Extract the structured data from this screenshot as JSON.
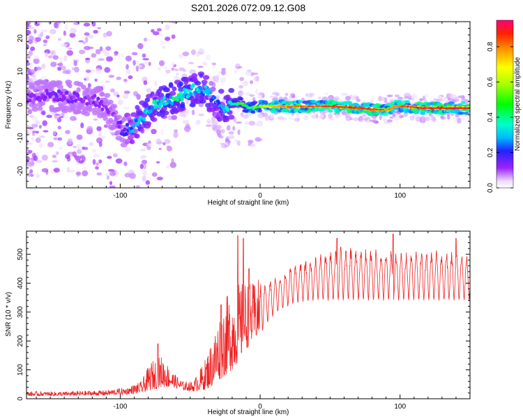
{
  "title": "S201.2026.072.09.12.G08",
  "chart_data": [
    {
      "type": "heatmap",
      "title": "S201.2026.072.09.12.G08",
      "xlabel": "Height of straight line (km)",
      "ylabel": "Frequency (Hz)",
      "xlim": [
        -167,
        150
      ],
      "ylim": [
        -25,
        25
      ],
      "x_ticks": [
        -100,
        0,
        100
      ],
      "y_ticks": [
        -20,
        -10,
        0,
        10,
        20
      ],
      "colorbar": {
        "label": "Normalized spectral amplitude",
        "range": [
          0,
          0.95
        ],
        "ticks": [
          "0.0",
          "0.2",
          "0.4",
          "0.6",
          "0.8"
        ],
        "tick_values": [
          0,
          0.2,
          0.4,
          0.6,
          0.8
        ]
      },
      "ridge": {
        "x": [
          -167,
          -150,
          -130,
          -115,
          -105,
          -98,
          -92,
          -85,
          -78,
          -70,
          -62,
          -55,
          -48,
          -42,
          -38,
          -34,
          -30,
          -26,
          -20,
          -14,
          -8,
          0,
          10,
          25,
          50,
          70,
          82,
          88,
          92,
          96,
          105,
          115,
          130,
          150
        ],
        "y": [
          2,
          3,
          2,
          1,
          -3,
          -8,
          -7,
          -4,
          -1,
          1,
          2,
          3,
          4.5,
          5,
          4,
          1.5,
          0,
          -0.5,
          0,
          0.5,
          -1,
          -0.5,
          -0.5,
          -0.5,
          -0.5,
          -1,
          -1.5,
          -1.5,
          -1.5,
          -0.5,
          -0.5,
          -1,
          -1,
          -1
        ],
        "amplitude": [
          0.15,
          0.15,
          0.15,
          0.15,
          0.12,
          0.18,
          0.3,
          0.35,
          0.4,
          0.4,
          0.45,
          0.45,
          0.4,
          0.35,
          0.35,
          0.3,
          0.3,
          0.35,
          0.45,
          0.55,
          0.55,
          0.6,
          0.8,
          0.85,
          0.9,
          0.92,
          0.9,
          0.85,
          0.8,
          0.85,
          0.9,
          0.92,
          0.95,
          0.95
        ]
      }
    },
    {
      "type": "line",
      "xlabel": "Height of straight line (km)",
      "ylabel": "SNR (10 * v/v)",
      "xlim": [
        -167,
        150
      ],
      "ylim": [
        0,
        580
      ],
      "x_ticks": [
        -100,
        0,
        100
      ],
      "y_ticks": [
        0,
        100,
        200,
        300,
        400,
        500
      ],
      "series": [
        {
          "name": "SNR",
          "color": "#ee2222",
          "envelope_x": [
            -167,
            -140,
            -110,
            -95,
            -85,
            -78,
            -70,
            -62,
            -55,
            -48,
            -40,
            -35,
            -30,
            -25,
            -20,
            -15,
            -10,
            -5,
            0,
            5,
            10,
            15,
            20,
            25,
            30,
            40,
            50,
            60,
            80,
            100,
            120,
            140,
            150
          ],
          "envelope_low": [
            10,
            10,
            12,
            15,
            20,
            30,
            40,
            40,
            30,
            25,
            30,
            40,
            60,
            80,
            100,
            130,
            170,
            200,
            220,
            260,
            290,
            310,
            320,
            330,
            335,
            340,
            340,
            340,
            340,
            340,
            340,
            340,
            340
          ],
          "envelope_high": [
            25,
            25,
            30,
            40,
            60,
            130,
            150,
            90,
            60,
            60,
            130,
            200,
            280,
            350,
            380,
            400,
            410,
            400,
            420,
            410,
            420,
            430,
            450,
            470,
            480,
            500,
            520,
            530,
            520,
            510,
            520,
            510,
            500
          ],
          "peaks": [
            {
              "x": -73,
              "y": 190
            },
            {
              "x": -28,
              "y": 325
            },
            {
              "x": -16,
              "y": 565
            },
            {
              "x": -12,
              "y": 555
            },
            {
              "x": -8,
              "y": 450
            },
            {
              "x": 55,
              "y": 555
            },
            {
              "x": 95,
              "y": 570
            },
            {
              "x": 140,
              "y": 555
            }
          ]
        }
      ]
    }
  ]
}
